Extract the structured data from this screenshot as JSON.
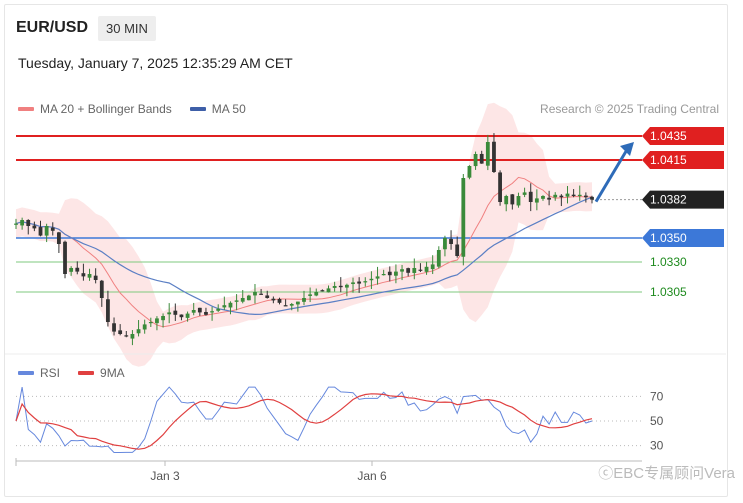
{
  "header": {
    "symbol": "EUR/USD",
    "timeframe": "30 MIN"
  },
  "datetime": "Tuesday, January 7, 2025 12:35:29 AM CET",
  "legend": {
    "ma20_label": "MA 20 + Bollinger Bands",
    "ma50_label": "MA 50"
  },
  "credit": "Research © 2025 Trading Central",
  "watermark": "ⓒEBC专属顾问Vera",
  "colors": {
    "up": "#3a8a3a",
    "down": "#333333",
    "ma20": "#f08080",
    "ma50": "#5b7fc4",
    "band": "#fde2e2",
    "resistance": "#e02020",
    "support_blue": "#3c78d8",
    "support_green": "#7fc97f",
    "rsi": "#6688dd",
    "rsi_ma": "#e04040",
    "arrow": "#2e6bb8"
  },
  "chart_data": [
    {
      "type": "candlestick",
      "title": "",
      "x_ticks": [
        "Jan 3",
        "Jan 6"
      ],
      "ylim": [
        1.0255,
        1.045
      ],
      "levels": [
        {
          "value": 1.0435,
          "label": "1.0435",
          "style": "resistance"
        },
        {
          "value": 1.0415,
          "label": "1.0415",
          "style": "resistance"
        },
        {
          "value": 1.0382,
          "label": "1.0382",
          "style": "current"
        },
        {
          "value": 1.035,
          "label": "1.0350",
          "style": "support_blue"
        },
        {
          "value": 1.033,
          "label": "1.0330",
          "style": "support_green"
        },
        {
          "value": 1.0305,
          "label": "1.0305",
          "style": "support_green"
        }
      ],
      "price_path": [
        1.0362,
        1.0365,
        1.036,
        1.0358,
        1.0352,
        1.036,
        1.0356,
        1.0345,
        1.032,
        1.0325,
        1.0322,
        1.0318,
        1.032,
        1.0315,
        1.03,
        1.028,
        1.0272,
        1.027,
        1.0268,
        1.027,
        1.0274,
        1.0278,
        1.028,
        1.0283,
        1.0285,
        1.0288,
        1.0286,
        1.0284,
        1.0287,
        1.029,
        1.0288,
        1.0286,
        1.0289,
        1.0291,
        1.0294,
        1.0296,
        1.0298,
        1.03,
        1.0302,
        1.0305,
        1.0303,
        1.03,
        1.0298,
        1.0296,
        1.0294,
        1.0295,
        1.0297,
        1.03,
        1.0303,
        1.0305,
        1.0306,
        1.0308,
        1.031,
        1.0309,
        1.0311,
        1.0313,
        1.0312,
        1.0314,
        1.0316,
        1.0318,
        1.032,
        1.0319,
        1.0322,
        1.0324,
        1.0321,
        1.0325,
        1.0323,
        1.0326,
        1.0328,
        1.034,
        1.035,
        1.0345,
        1.0335,
        1.04,
        1.041,
        1.042,
        1.0412,
        1.043,
        1.0405,
        1.038,
        1.0385,
        1.0378,
        1.0385,
        1.0388,
        1.038,
        1.0383,
        1.0385,
        1.0382,
        1.0386,
        1.0384,
        1.0387,
        1.0385,
        1.0386,
        1.0384,
        1.0382
      ]
    },
    {
      "type": "line",
      "title": "",
      "series": [
        {
          "name": "RSI"
        },
        {
          "name": "9MA"
        }
      ],
      "y_ticks": [
        70,
        50,
        30
      ],
      "ylim": [
        20,
        80
      ]
    }
  ],
  "axis": {
    "x_labels": [
      "Jan 3",
      "Jan 6"
    ],
    "rsi_ticks": [
      "70",
      "50",
      "30"
    ]
  }
}
